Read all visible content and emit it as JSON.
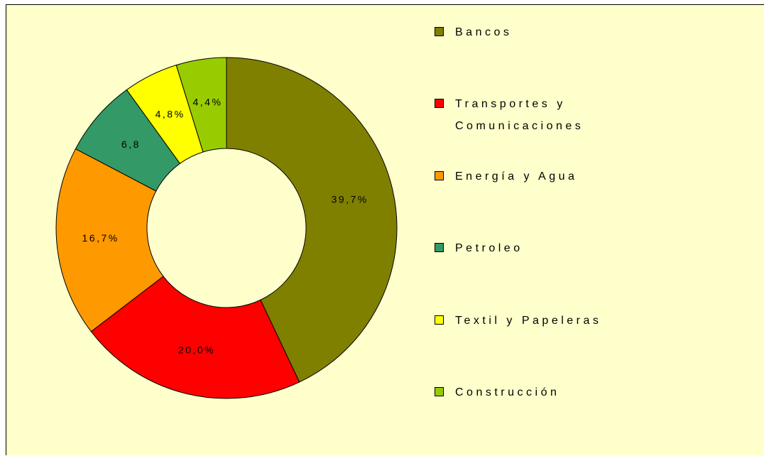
{
  "chart_data": {
    "type": "donut",
    "categories": [
      "Bancos",
      "Transportes y Comunicaciones",
      "Energía y Agua",
      "Petroleo",
      "Textil y Papeleras",
      "Construcción"
    ],
    "values": [
      39.7,
      20.0,
      16.7,
      6.8,
      4.8,
      4.4
    ],
    "value_labels": [
      "39,7%",
      "20,0%",
      "16,7%",
      "6,8",
      "4,8%",
      "4,4%"
    ],
    "colors": [
      "#808000",
      "#ff0000",
      "#ff9900",
      "#339966",
      "#ffff00",
      "#99cc00"
    ],
    "legend": "right"
  }
}
